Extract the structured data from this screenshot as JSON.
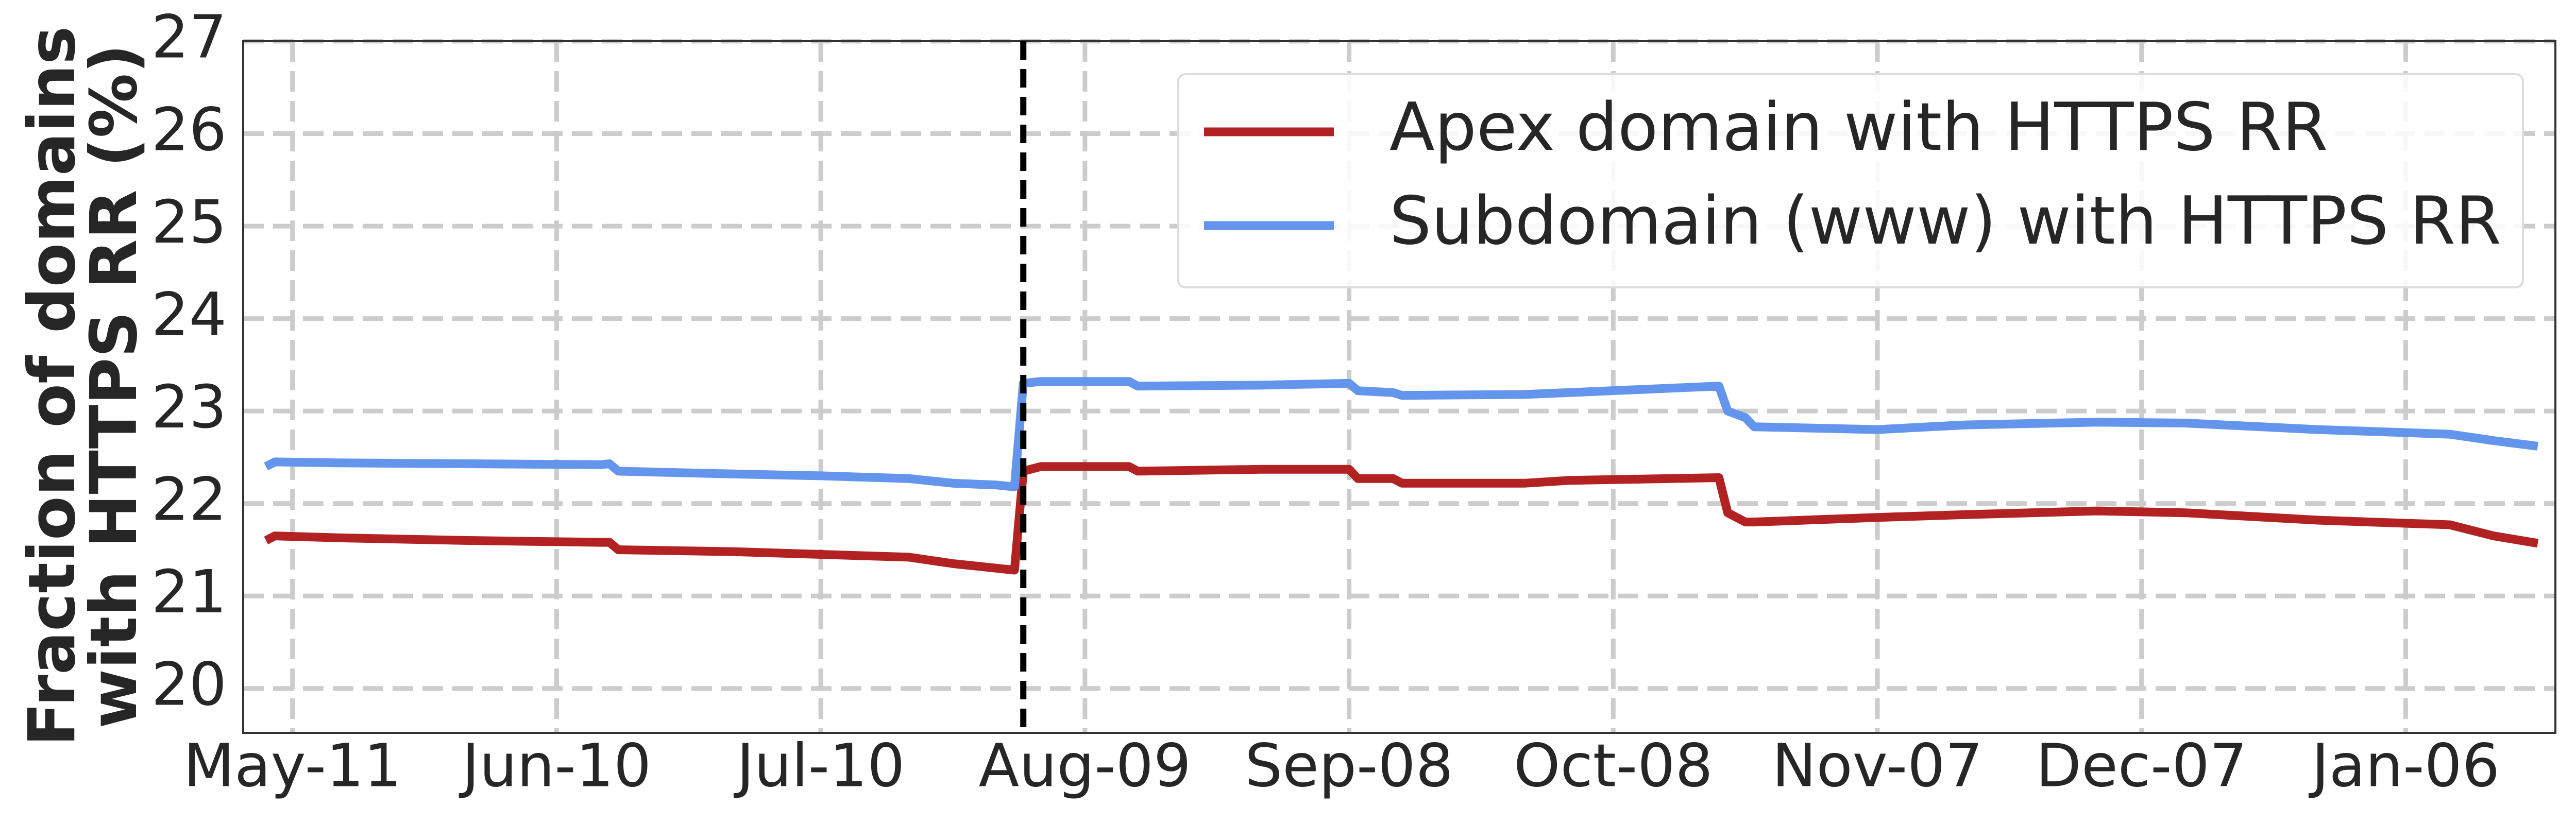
{
  "chart_data": {
    "type": "line",
    "ylabel": [
      "Fraction of domains",
      "with HTTPS RR (%)"
    ],
    "x": [
      -3,
      -2,
      5,
      20,
      35,
      36,
      37,
      50,
      60,
      70,
      75,
      80,
      82,
      83,
      85,
      95,
      96,
      110,
      120,
      121,
      125,
      126,
      140,
      145,
      162,
      163,
      165,
      166,
      180,
      190,
      205,
      215,
      230,
      245,
      250,
      255
    ],
    "series": [
      {
        "name": "Apex domain with HTTPS RR",
        "color": "#b22222",
        "values": [
          21.6,
          21.65,
          21.63,
          21.6,
          21.58,
          21.58,
          21.5,
          21.48,
          21.45,
          21.42,
          21.35,
          21.3,
          21.28,
          22.35,
          22.4,
          22.4,
          22.35,
          22.37,
          22.37,
          22.27,
          22.27,
          22.22,
          22.22,
          22.25,
          22.28,
          21.9,
          21.8,
          21.8,
          21.85,
          21.88,
          21.92,
          21.9,
          21.82,
          21.77,
          21.65,
          21.57
        ]
      },
      {
        "name": "Subdomain (www) with HTTPS RR",
        "color": "#6495ed",
        "values": [
          22.4,
          22.45,
          22.44,
          22.43,
          22.42,
          22.43,
          22.35,
          22.32,
          22.3,
          22.27,
          22.22,
          22.2,
          22.18,
          23.3,
          23.32,
          23.32,
          23.27,
          23.28,
          23.3,
          23.22,
          23.2,
          23.17,
          23.18,
          23.2,
          23.27,
          23.0,
          22.93,
          22.83,
          22.8,
          22.85,
          22.88,
          22.87,
          22.8,
          22.75,
          22.68,
          22.62
        ]
      }
    ],
    "vline": 83,
    "xlim": [
      -5.6,
      257
    ],
    "xticks": [
      {
        "value": 0,
        "label": "May-11"
      },
      {
        "value": 30,
        "label": "Jun-10"
      },
      {
        "value": 60,
        "label": "Jul-10"
      },
      {
        "value": 90,
        "label": "Aug-09"
      },
      {
        "value": 120,
        "label": "Sep-08"
      },
      {
        "value": 150,
        "label": "Oct-08"
      },
      {
        "value": 180,
        "label": "Nov-07"
      },
      {
        "value": 210,
        "label": "Dec-07"
      },
      {
        "value": 240,
        "label": "Jan-06"
      }
    ],
    "ylim": [
      19.52,
      27
    ],
    "yticks": [
      20,
      21,
      22,
      23,
      24,
      25,
      26,
      27
    ],
    "grid": true,
    "legend": "upper right"
  }
}
